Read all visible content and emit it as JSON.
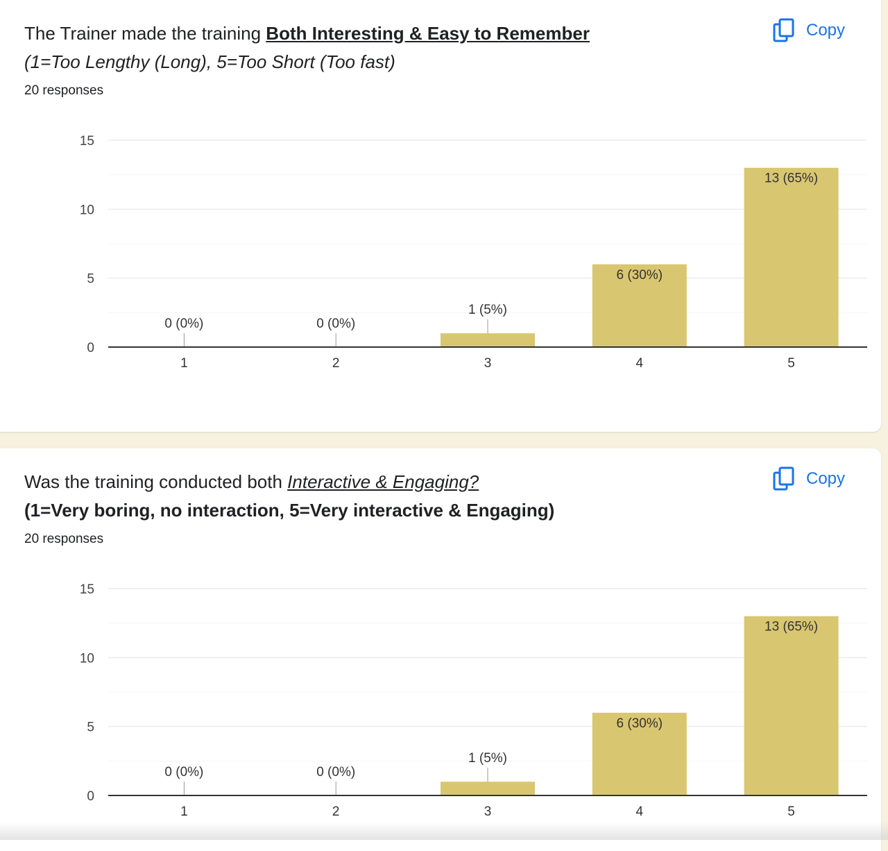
{
  "colors": {
    "bar": "#d9c670",
    "grid": "#ebebeb",
    "axis": "#333333",
    "copy": "#1a73e8",
    "background": "#f7f1df"
  },
  "icons": {
    "copy": "copy-icon"
  },
  "questions": [
    {
      "title_plain": "The Trainer made the training ",
      "title_emph": "Both Interesting & Easy to Remember",
      "subtitle": "(1=Too Lengthy (Long), 5=Too Short (Too fast)",
      "responses": "20 responses",
      "copy_label": "Copy"
    },
    {
      "title_plain": "Was the training conducted both ",
      "title_emph": "Interactive & Engaging?",
      "subtitle": "(1=Very boring, no interaction, 5=Very interactive & Engaging)",
      "responses": "20 responses",
      "copy_label": "Copy"
    }
  ],
  "chart_data": [
    {
      "type": "bar",
      "categories": [
        "1",
        "2",
        "3",
        "4",
        "5"
      ],
      "values": [
        0,
        0,
        1,
        6,
        13
      ],
      "data_labels": [
        "0 (0%)",
        "0 (0%)",
        "1 (5%)",
        "6 (30%)",
        "13 (65%)"
      ],
      "yticks": [
        0,
        5,
        10,
        15
      ],
      "ylim": [
        0,
        15
      ],
      "grid": true,
      "minor_grid": true,
      "legend": "none"
    },
    {
      "type": "bar",
      "categories": [
        "1",
        "2",
        "3",
        "4",
        "5"
      ],
      "values": [
        0,
        0,
        1,
        6,
        13
      ],
      "data_labels": [
        "0 (0%)",
        "0 (0%)",
        "1 (5%)",
        "6 (30%)",
        "13 (65%)"
      ],
      "yticks": [
        0,
        5,
        10,
        15
      ],
      "ylim": [
        0,
        15
      ],
      "grid": true,
      "minor_grid": true,
      "legend": "none"
    }
  ]
}
